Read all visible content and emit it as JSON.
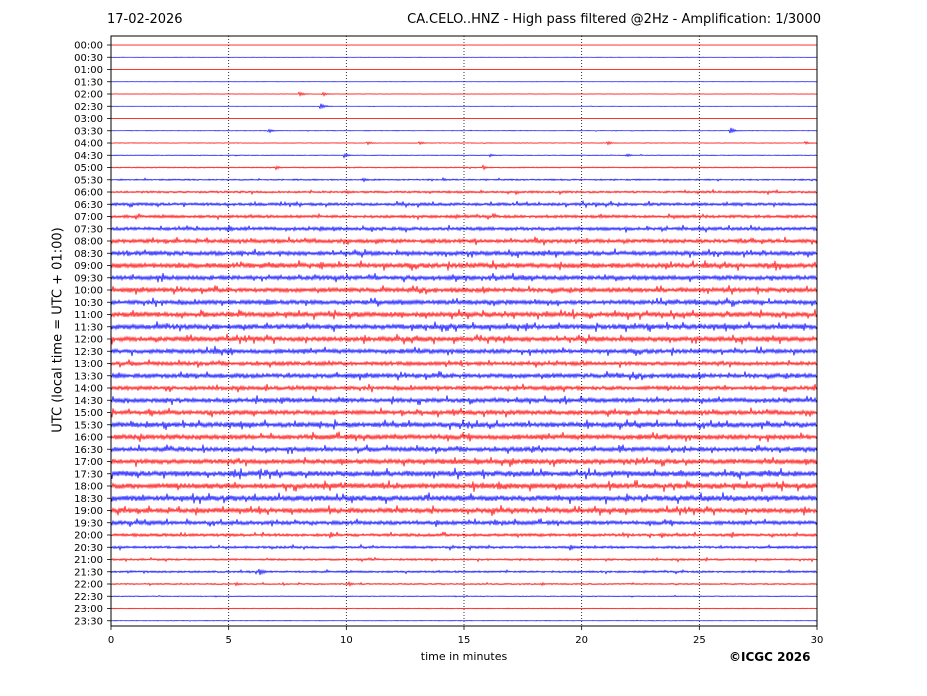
{
  "header": {
    "date": "17-02-2026",
    "title": "CA.CELO..HNZ - High pass filtered @2Hz - Amplification: 1/3000"
  },
  "axes": {
    "ylabel": "UTC (local time = UTC + 01:00)",
    "xlabel": "time in minutes"
  },
  "footer": {
    "copyright": "©ICGC 2026"
  },
  "colors": {
    "trace_a": "#ff0000",
    "trace_b": "#0000ff",
    "grid": "#000000",
    "frame": "#000000"
  },
  "chart_data": {
    "type": "line",
    "plot_kind": "helicorder",
    "title": "CA.CELO..HNZ - High pass filtered @2Hz - Amplification: 1/3000",
    "xlabel": "time in minutes",
    "ylabel": "UTC (local time = UTC + 01:00)",
    "xlim": [
      0,
      30
    ],
    "x_ticks": [
      0,
      5,
      10,
      15,
      20,
      25,
      30
    ],
    "vertical_grid_dotted": true,
    "rows": [
      "00:00",
      "00:30",
      "01:00",
      "01:30",
      "02:00",
      "02:30",
      "03:00",
      "03:30",
      "04:00",
      "04:30",
      "05:00",
      "05:30",
      "06:00",
      "06:30",
      "07:00",
      "07:30",
      "08:00",
      "08:30",
      "09:00",
      "09:30",
      "10:00",
      "10:30",
      "11:00",
      "11:30",
      "12:00",
      "12:30",
      "13:00",
      "13:30",
      "14:00",
      "14:30",
      "15:00",
      "15:30",
      "16:00",
      "16:30",
      "17:00",
      "17:30",
      "18:00",
      "18:30",
      "19:00",
      "19:30",
      "20:00",
      "20:30",
      "21:00",
      "21:30",
      "22:00",
      "22:30",
      "23:00",
      "23:30"
    ],
    "row_colors": [
      "red",
      "blue",
      "red",
      "blue",
      "red",
      "blue",
      "red",
      "blue",
      "red",
      "blue",
      "red",
      "blue",
      "red",
      "blue",
      "red",
      "blue",
      "red",
      "blue",
      "red",
      "blue",
      "red",
      "blue",
      "red",
      "blue",
      "red",
      "blue",
      "red",
      "blue",
      "red",
      "blue",
      "red",
      "blue",
      "red",
      "blue",
      "red",
      "blue",
      "red",
      "blue",
      "red",
      "blue",
      "red",
      "blue",
      "red",
      "blue",
      "red",
      "blue",
      "red",
      "blue"
    ],
    "noise_level": [
      0.3,
      0.3,
      0.3,
      0.3,
      0.5,
      0.4,
      0.3,
      0.5,
      0.6,
      0.8,
      1.2,
      1.5,
      2.2,
      3.0,
      3.0,
      3.5,
      4.0,
      4.5,
      5.0,
      4.5,
      4.5,
      4.5,
      5.0,
      5.0,
      5.0,
      4.5,
      4.0,
      4.5,
      4.0,
      4.5,
      4.5,
      5.0,
      5.0,
      4.5,
      5.0,
      5.5,
      5.5,
      5.5,
      5.0,
      4.0,
      3.0,
      2.5,
      2.0,
      2.0,
      1.5,
      1.0,
      0.8,
      0.5
    ],
    "events": [
      {
        "row": "02:00",
        "t": 8.0,
        "amp": 6
      },
      {
        "row": "02:00",
        "t": 9.0,
        "amp": 5
      },
      {
        "row": "02:30",
        "t": 8.9,
        "amp": 7
      },
      {
        "row": "03:30",
        "t": 6.7,
        "amp": 5
      },
      {
        "row": "03:30",
        "t": 26.3,
        "amp": 8
      },
      {
        "row": "04:00",
        "t": 10.9,
        "amp": 4
      },
      {
        "row": "04:00",
        "t": 13.1,
        "amp": 4
      },
      {
        "row": "04:00",
        "t": 21.1,
        "amp": 4
      },
      {
        "row": "04:00",
        "t": 29.5,
        "amp": 4
      },
      {
        "row": "04:30",
        "t": 9.9,
        "amp": 5
      },
      {
        "row": "04:30",
        "t": 16.1,
        "amp": 4
      },
      {
        "row": "04:30",
        "t": 21.9,
        "amp": 4
      },
      {
        "row": "05:00",
        "t": 7.0,
        "amp": 5
      },
      {
        "row": "05:00",
        "t": 15.8,
        "amp": 5
      },
      {
        "row": "05:30",
        "t": 10.7,
        "amp": 5
      },
      {
        "row": "05:30",
        "t": 14.1,
        "amp": 4
      },
      {
        "row": "07:30",
        "t": 5.0,
        "amp": 9
      },
      {
        "row": "07:30",
        "t": 8.9,
        "amp": 7
      },
      {
        "row": "08:00",
        "t": 20.2,
        "amp": 8
      },
      {
        "row": "09:00",
        "t": 8.9,
        "amp": 12
      },
      {
        "row": "09:00",
        "t": 16.2,
        "amp": 9
      },
      {
        "row": "10:30",
        "t": 6.6,
        "amp": 12
      },
      {
        "row": "11:00",
        "t": 3.9,
        "amp": 9
      },
      {
        "row": "11:00",
        "t": 13.2,
        "amp": 8
      },
      {
        "row": "11:00",
        "t": 18.5,
        "amp": 9
      },
      {
        "row": "12:00",
        "t": 3.2,
        "amp": 10
      },
      {
        "row": "12:00",
        "t": 16.9,
        "amp": 9
      },
      {
        "row": "12:30",
        "t": 4.4,
        "amp": 12
      },
      {
        "row": "13:30",
        "t": 3.2,
        "amp": 8
      },
      {
        "row": "13:30",
        "t": 21.5,
        "amp": 8
      },
      {
        "row": "15:00",
        "t": 1.6,
        "amp": 9
      },
      {
        "row": "15:00",
        "t": 6.8,
        "amp": 7
      },
      {
        "row": "15:30",
        "t": 1.5,
        "amp": 9
      },
      {
        "row": "15:30",
        "t": 11.2,
        "amp": 8
      },
      {
        "row": "16:30",
        "t": 17.9,
        "amp": 9
      },
      {
        "row": "16:30",
        "t": 21.6,
        "amp": 12
      },
      {
        "row": "17:00",
        "t": 22.3,
        "amp": 9
      },
      {
        "row": "17:00",
        "t": 29.5,
        "amp": 11
      },
      {
        "row": "17:30",
        "t": 11.1,
        "amp": 10
      },
      {
        "row": "18:30",
        "t": 3.0,
        "amp": 9
      },
      {
        "row": "18:30",
        "t": 23.2,
        "amp": 8
      },
      {
        "row": "19:00",
        "t": 3.6,
        "amp": 9
      },
      {
        "row": "19:00",
        "t": 9.3,
        "amp": 9
      },
      {
        "row": "19:30",
        "t": 13.8,
        "amp": 9
      },
      {
        "row": "19:30",
        "t": 16.3,
        "amp": 9
      },
      {
        "row": "20:00",
        "t": 9.3,
        "amp": 8
      },
      {
        "row": "20:30",
        "t": 19.5,
        "amp": 7
      },
      {
        "row": "21:30",
        "t": 6.3,
        "amp": 10
      },
      {
        "row": "22:00",
        "t": 5.3,
        "amp": 5
      },
      {
        "row": "22:00",
        "t": 10.1,
        "amp": 5
      },
      {
        "row": "22:00",
        "t": 18.3,
        "amp": 4
      }
    ]
  }
}
